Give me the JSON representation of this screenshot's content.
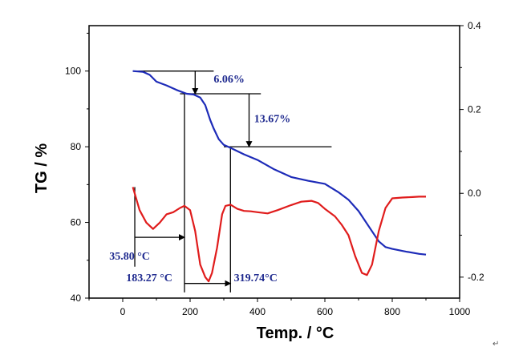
{
  "chart_data": {
    "type": "line",
    "xlabel": "Temp. / °C",
    "ylabel_left": "TG / %",
    "ylabel_right": "",
    "xlim": [
      -100,
      1000
    ],
    "ylim_left": [
      40,
      112
    ],
    "ylim_right": [
      -0.25,
      0.4
    ],
    "x_ticks": [
      0,
      200,
      400,
      600,
      800,
      1000
    ],
    "y_left_ticks": [
      40,
      60,
      80,
      100
    ],
    "y_right_ticks": [
      "-0.2",
      "0.0",
      "0.2",
      "0.4"
    ],
    "y_right_tick_values": [
      -0.2,
      0.0,
      0.2,
      0.4
    ],
    "series": [
      {
        "axis": "left",
        "color": "#1d2bb8",
        "x": [
          30,
          60,
          80,
          100,
          130,
          160,
          190,
          210,
          230,
          245,
          260,
          270,
          285,
          300,
          320,
          360,
          400,
          450,
          500,
          550,
          600,
          640,
          670,
          700,
          730,
          760,
          780,
          800,
          840,
          880,
          900
        ],
        "y": [
          100,
          99.8,
          99,
          97.2,
          96.2,
          95,
          94,
          93.8,
          93,
          91,
          87,
          84.8,
          82,
          80.5,
          79.7,
          78,
          76.5,
          74,
          72,
          71,
          70.2,
          68,
          66,
          63,
          59,
          55,
          53.5,
          53,
          52.3,
          51.7,
          51.5
        ]
      },
      {
        "axis": "right",
        "color": "#e01c1c",
        "x": [
          30,
          50,
          70,
          90,
          110,
          130,
          150,
          170,
          183,
          200,
          215,
          230,
          245,
          255,
          265,
          280,
          295,
          305,
          320,
          340,
          360,
          380,
          400,
          430,
          460,
          500,
          530,
          560,
          580,
          600,
          630,
          650,
          670,
          690,
          710,
          725,
          740,
          760,
          780,
          800,
          830,
          860,
          880,
          900
        ],
        "y": [
          0.015,
          -0.04,
          -0.07,
          -0.085,
          -0.07,
          -0.05,
          -0.045,
          -0.035,
          -0.03,
          -0.04,
          -0.09,
          -0.17,
          -0.2,
          -0.21,
          -0.19,
          -0.13,
          -0.05,
          -0.03,
          -0.027,
          -0.037,
          -0.042,
          -0.043,
          -0.045,
          -0.048,
          -0.04,
          -0.028,
          -0.02,
          -0.018,
          -0.023,
          -0.037,
          -0.055,
          -0.075,
          -0.1,
          -0.15,
          -0.19,
          -0.195,
          -0.17,
          -0.09,
          -0.035,
          -0.012,
          -0.01,
          -0.009,
          -0.008,
          -0.008
        ]
      }
    ],
    "annotations": [
      {
        "text": "6.06%",
        "x": 270,
        "y": 97,
        "axis": "left"
      },
      {
        "text": "13.67%",
        "x": 390,
        "y": 86.5,
        "axis": "left"
      },
      {
        "text": "35.80 °C",
        "x": -40,
        "y": -0.158,
        "axis": "right"
      },
      {
        "text": "183.27 °C",
        "x": 10,
        "y": -0.21,
        "axis": "right"
      },
      {
        "text": "319.74°C",
        "x": 330,
        "y": -0.21,
        "axis": "right"
      }
    ],
    "guides": [
      {
        "kind": "hline",
        "axis": "left",
        "y": 100,
        "x0": 30,
        "x1": 270
      },
      {
        "kind": "hline",
        "axis": "left",
        "y": 94,
        "x0": 170,
        "x1": 410
      },
      {
        "kind": "hline",
        "axis": "left",
        "y": 80,
        "x0": 300,
        "x1": 620
      },
      {
        "kind": "arrow_down",
        "axis": "left",
        "x": 215,
        "y0": 100,
        "y1": 94
      },
      {
        "kind": "arrow_down",
        "axis": "left",
        "x": 375,
        "y0": 94,
        "y1": 80
      },
      {
        "kind": "vline",
        "axis": "right",
        "x": 35.8,
        "y0": 0.015,
        "y1": -0.175
      },
      {
        "kind": "vline",
        "axis": "left",
        "x": 183.27,
        "y0": 94,
        "y1": 41.5
      },
      {
        "kind": "vline",
        "axis": "left",
        "x": 319.74,
        "y0": 80,
        "y1": 41.5
      },
      {
        "kind": "arrow_right",
        "axis": "right",
        "y": -0.105,
        "x0": 35.8,
        "x1": 183.27
      },
      {
        "kind": "arrow_right",
        "axis": "right",
        "y": -0.215,
        "x0": 183.27,
        "x1": 319.74
      }
    ],
    "grid": false
  },
  "corner_mark": "↵"
}
